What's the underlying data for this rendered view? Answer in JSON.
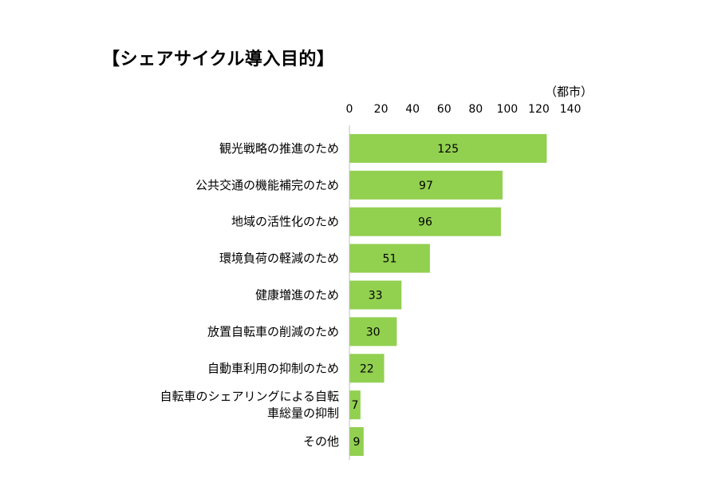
{
  "chart_data": {
    "type": "bar",
    "orientation": "horizontal",
    "title": "【シェアサイクル導入目的】",
    "unit_label": "（都市）",
    "categories": [
      [
        "観光戦略の推進のため"
      ],
      [
        "公共交通の機能補完のため"
      ],
      [
        "地域の活性化のため"
      ],
      [
        "環境負荷の軽減のため"
      ],
      [
        "健康増進のため"
      ],
      [
        "放置自転車の削減のため"
      ],
      [
        "自動車利用の抑制のため"
      ],
      [
        "自転車のシェアリングによる自転",
        "車総量の抑制"
      ],
      [
        "その他"
      ]
    ],
    "values": [
      125,
      97,
      96,
      51,
      33,
      30,
      22,
      7,
      9
    ],
    "xlim": [
      0,
      140
    ],
    "ticks": [
      0,
      20,
      40,
      60,
      80,
      100,
      120,
      140
    ],
    "tick_labels": [
      "0",
      "20",
      "40",
      "60",
      "80",
      "100",
      "120",
      "140"
    ],
    "axis_position": "top",
    "grid": false,
    "data_labels": true,
    "bar_color": "#92d050"
  }
}
